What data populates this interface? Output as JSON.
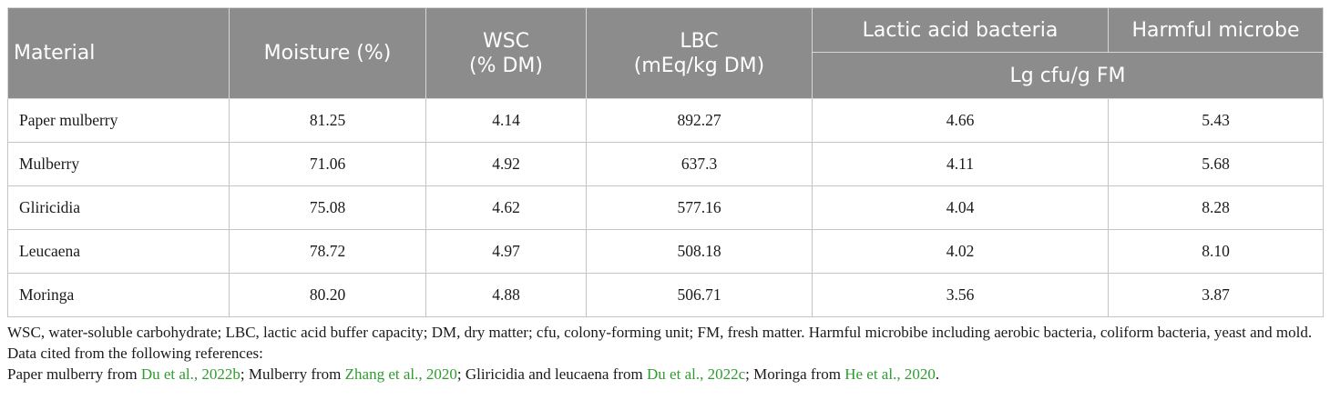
{
  "table": {
    "headers": {
      "material": "Material",
      "moisture": "Moisture (%)",
      "wsc": "WSC\n(% DM)",
      "lbc": "LBC\n(mEq/kg DM)",
      "lab": "Lactic acid bacteria",
      "harmful": "Harmful microbe",
      "unit": "Lg cfu/g FM"
    },
    "rows": [
      {
        "material": "Paper mulberry",
        "moisture": "81.25",
        "wsc": "4.14",
        "lbc": "892.27",
        "lab": "4.66",
        "harmful": "5.43"
      },
      {
        "material": "Mulberry",
        "moisture": "71.06",
        "wsc": "4.92",
        "lbc": "637.3",
        "lab": "4.11",
        "harmful": "5.68"
      },
      {
        "material": "Gliricidia",
        "moisture": "75.08",
        "wsc": "4.62",
        "lbc": "577.16",
        "lab": "4.04",
        "harmful": "8.28"
      },
      {
        "material": "Leucaena",
        "moisture": "78.72",
        "wsc": "4.97",
        "lbc": "508.18",
        "lab": "4.02",
        "harmful": "8.10"
      },
      {
        "material": "Moringa",
        "moisture": "80.20",
        "wsc": "4.88",
        "lbc": "506.71",
        "lab": "3.56",
        "harmful": "3.87"
      }
    ]
  },
  "footnotes": {
    "abbreviations": "WSC, water-soluble carbohydrate; LBC, lactic acid buffer capacity; DM, dry matter; cfu, colony-forming unit; FM, fresh matter. Harmful microbibe including aerobic bacteria, coliform bacteria, yeast and mold.",
    "data_cited": "Data cited from the following references:",
    "references": {
      "paper_mulberry_prefix": "Paper mulberry from ",
      "paper_mulberry_ref": "Du et al., 2022b",
      "mulberry_prefix": "; Mulberry from ",
      "mulberry_ref": "Zhang et al., 2020",
      "glir_prefix": "; Gliricidia and leucaena from ",
      "glir_ref": "Du et al., 2022c",
      "moringa_prefix": "; Moringa from ",
      "moringa_ref": "He et al., 2020",
      "end": "."
    }
  },
  "colors": {
    "header_bg": "#8c8c8c",
    "header_text": "#ffffff",
    "link_green": "#2e9c2e"
  }
}
